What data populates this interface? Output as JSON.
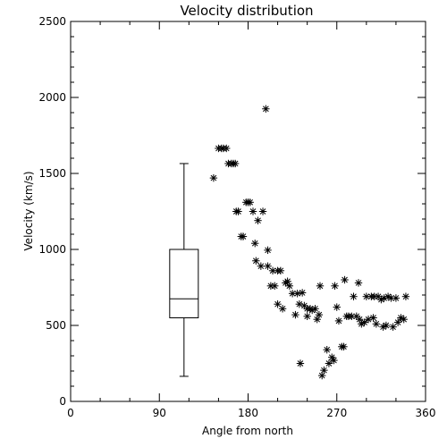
{
  "chart_data": {
    "type": "scatter",
    "title": "Velocity distribution",
    "xlabel": "Angle from north",
    "ylabel": "Velocity (km/s)",
    "xlim": [
      0,
      360
    ],
    "ylim": [
      0,
      2500
    ],
    "xticks": [
      0,
      90,
      180,
      270,
      360
    ],
    "yticks": [
      0,
      500,
      1000,
      1500,
      2000,
      2500
    ],
    "grid": false,
    "marker": "asterisk",
    "boxplot": {
      "x": 115,
      "min": 165,
      "q1": 550,
      "median": 675,
      "q3": 1000,
      "max": 1565
    },
    "points": [
      [
        145,
        1470
      ],
      [
        150,
        1665
      ],
      [
        153,
        1665
      ],
      [
        155,
        1665
      ],
      [
        158,
        1665
      ],
      [
        160,
        1565
      ],
      [
        163,
        1565
      ],
      [
        165,
        1565
      ],
      [
        167,
        1565
      ],
      [
        168,
        1250
      ],
      [
        170,
        1250
      ],
      [
        173,
        1085
      ],
      [
        175,
        1085
      ],
      [
        178,
        1310
      ],
      [
        180,
        1310
      ],
      [
        182,
        1310
      ],
      [
        185,
        1250
      ],
      [
        187,
        1040
      ],
      [
        188,
        925
      ],
      [
        190,
        1190
      ],
      [
        193,
        890
      ],
      [
        195,
        1250
      ],
      [
        198,
        1925
      ],
      [
        200,
        995
      ],
      [
        200,
        890
      ],
      [
        203,
        760
      ],
      [
        205,
        860
      ],
      [
        207,
        760
      ],
      [
        210,
        640
      ],
      [
        210,
        860
      ],
      [
        213,
        860
      ],
      [
        215,
        610
      ],
      [
        218,
        780
      ],
      [
        220,
        790
      ],
      [
        222,
        760
      ],
      [
        225,
        710
      ],
      [
        228,
        570
      ],
      [
        230,
        710
      ],
      [
        232,
        640
      ],
      [
        233,
        250
      ],
      [
        235,
        715
      ],
      [
        237,
        630
      ],
      [
        240,
        560
      ],
      [
        240,
        610
      ],
      [
        243,
        610
      ],
      [
        245,
        600
      ],
      [
        248,
        610
      ],
      [
        250,
        540
      ],
      [
        252,
        570
      ],
      [
        253,
        760
      ],
      [
        255,
        170
      ],
      [
        257,
        205
      ],
      [
        260,
        340
      ],
      [
        262,
        250
      ],
      [
        265,
        290
      ],
      [
        267,
        270
      ],
      [
        268,
        760
      ],
      [
        270,
        620
      ],
      [
        272,
        530
      ],
      [
        275,
        360
      ],
      [
        277,
        360
      ],
      [
        278,
        800
      ],
      [
        280,
        560
      ],
      [
        282,
        560
      ],
      [
        285,
        560
      ],
      [
        287,
        690
      ],
      [
        290,
        560
      ],
      [
        292,
        780
      ],
      [
        293,
        540
      ],
      [
        295,
        510
      ],
      [
        298,
        520
      ],
      [
        300,
        690
      ],
      [
        302,
        540
      ],
      [
        305,
        690
      ],
      [
        307,
        550
      ],
      [
        308,
        690
      ],
      [
        310,
        510
      ],
      [
        312,
        690
      ],
      [
        315,
        670
      ],
      [
        317,
        490
      ],
      [
        318,
        680
      ],
      [
        320,
        500
      ],
      [
        322,
        690
      ],
      [
        325,
        680
      ],
      [
        327,
        490
      ],
      [
        330,
        680
      ],
      [
        332,
        520
      ],
      [
        335,
        550
      ],
      [
        338,
        540
      ],
      [
        340,
        690
      ]
    ]
  }
}
